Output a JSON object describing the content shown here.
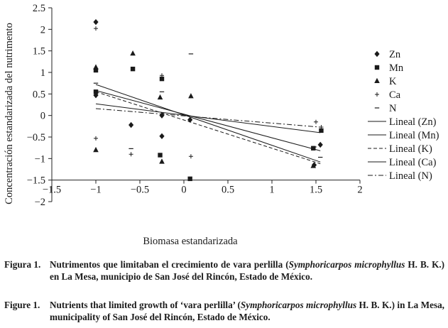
{
  "chart_data": {
    "type": "scatter",
    "xlabel": "Biomasa estandarizada",
    "ylabel": "Concentración estandarizada del nutrimento",
    "xlim": [
      -1.5,
      2
    ],
    "ylim": [
      -2,
      2.5
    ],
    "xticks": [
      -1.5,
      -1,
      -0.5,
      0,
      0.5,
      1,
      1.5,
      2
    ],
    "yticks": [
      -2,
      -1.5,
      -1,
      -0.5,
      0,
      0.5,
      1,
      1.5,
      2,
      2.5
    ],
    "xtick_labels": [
      "−1.5",
      "−1",
      "−0.5",
      "0",
      "0.5",
      "1",
      "1.5",
      "2"
    ],
    "ytick_labels": [
      "−2",
      "−1.5",
      "−1",
      "−0.5",
      "0",
      "0.5",
      "1",
      "1.5",
      "2",
      "2.5"
    ],
    "grid": false,
    "legend_position": "right",
    "series": [
      {
        "name": "Zn",
        "marker": "diamond",
        "x": [
          -1,
          -1,
          -0.6,
          -0.25,
          -0.25,
          0.07,
          1.48,
          1.55
        ],
        "y": [
          2.17,
          0.47,
          -0.22,
          0,
          -0.48,
          -0.1,
          -1.15,
          -0.68
        ]
      },
      {
        "name": "Mn",
        "marker": "square",
        "x": [
          -1,
          -1,
          -0.58,
          -0.25,
          -0.27,
          0.07,
          1.47,
          1.56
        ],
        "y": [
          1.05,
          0.55,
          1.08,
          0.85,
          -0.92,
          -1.47,
          -0.76,
          -0.35
        ]
      },
      {
        "name": "K",
        "marker": "triangle",
        "x": [
          -1,
          -1,
          -0.58,
          -0.27,
          -0.25,
          0.08,
          1.47
        ],
        "y": [
          1.12,
          -0.8,
          1.44,
          0.42,
          -1.07,
          0.45,
          -1.17
        ]
      },
      {
        "name": "Ca",
        "marker": "plus",
        "x": [
          -1,
          -1,
          -0.6,
          -0.25,
          0.08,
          1.5,
          1.56
        ],
        "y": [
          2.02,
          -0.53,
          -0.9,
          0.93,
          -0.95,
          -0.15,
          -0.27
        ]
      },
      {
        "name": "N",
        "marker": "dash",
        "x": [
          -1,
          -0.6,
          -0.25,
          0.08,
          1.48,
          1.55
        ],
        "y": [
          0.75,
          -0.77,
          0.55,
          1.43,
          -0.73,
          -0.97
        ]
      }
    ],
    "trendlines": [
      {
        "name": "Lineal (Zn)",
        "style": "solid",
        "x": [
          -1,
          1.55
        ],
        "y": [
          0.72,
          -1.08
        ]
      },
      {
        "name": "Lineal (Mn)",
        "style": "solid",
        "x": [
          -1,
          1.55
        ],
        "y": [
          0.27,
          -0.4
        ]
      },
      {
        "name": "Lineal (K)",
        "style": "dashed",
        "x": [
          -1,
          1.55
        ],
        "y": [
          0.55,
          -1.12
        ]
      },
      {
        "name": "Lineal (Ca)",
        "style": "solid",
        "x": [
          -1,
          1.55
        ],
        "y": [
          0.58,
          -0.82
        ]
      },
      {
        "name": "Lineal (N)",
        "style": "dashdot",
        "x": [
          -1,
          1.55
        ],
        "y": [
          0.16,
          -0.27
        ]
      }
    ]
  },
  "captions": {
    "es": {
      "number": "Figura 1.",
      "pre": "Nutrimentos que limitaban el crecimiento de vara perlilla (",
      "species": "Symphoricarpos microphyllus",
      "post": " H. B. K.) en La Mesa, municipio de San José del Rincón, Estado de México."
    },
    "en": {
      "number": "Figure 1.",
      "pre": "Nutrients that limited growth of ‘vara perlilla’ (",
      "species": "Symphoricarpos microphyllus",
      "post": " H. B. K.) in La Mesa, municipality of San José del Rincón, Estado de México."
    }
  }
}
